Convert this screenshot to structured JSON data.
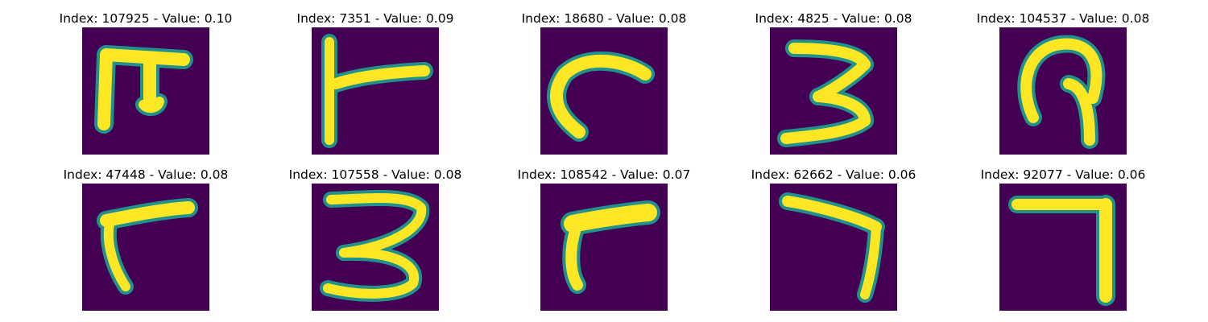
{
  "colors": {
    "background": "#440154",
    "mid": "#21918c",
    "high": "#fde725"
  },
  "panels": [
    {
      "title": "Index: 107925 - Value: 0.10",
      "shape": "glyph-pi"
    },
    {
      "title": "Index: 7351 - Value: 0.09",
      "shape": "glyph-corner-tee"
    },
    {
      "title": "Index: 18680 - Value: 0.08",
      "shape": "glyph-hook"
    },
    {
      "title": "Index: 4825 - Value: 0.08",
      "shape": "glyph-three"
    },
    {
      "title": "Index: 104537 - Value: 0.08",
      "shape": "glyph-loop"
    },
    {
      "title": "Index: 47448 - Value: 0.08",
      "shape": "glyph-gamma"
    },
    {
      "title": "Index: 107558 - Value: 0.08",
      "shape": "glyph-three-wide"
    },
    {
      "title": "Index: 108542 - Value: 0.07",
      "shape": "glyph-gamma-thick"
    },
    {
      "title": "Index: 62662 - Value: 0.06",
      "shape": "glyph-seven"
    },
    {
      "title": "Index: 92077 - Value: 0.06",
      "shape": "glyph-seven-square"
    }
  ]
}
